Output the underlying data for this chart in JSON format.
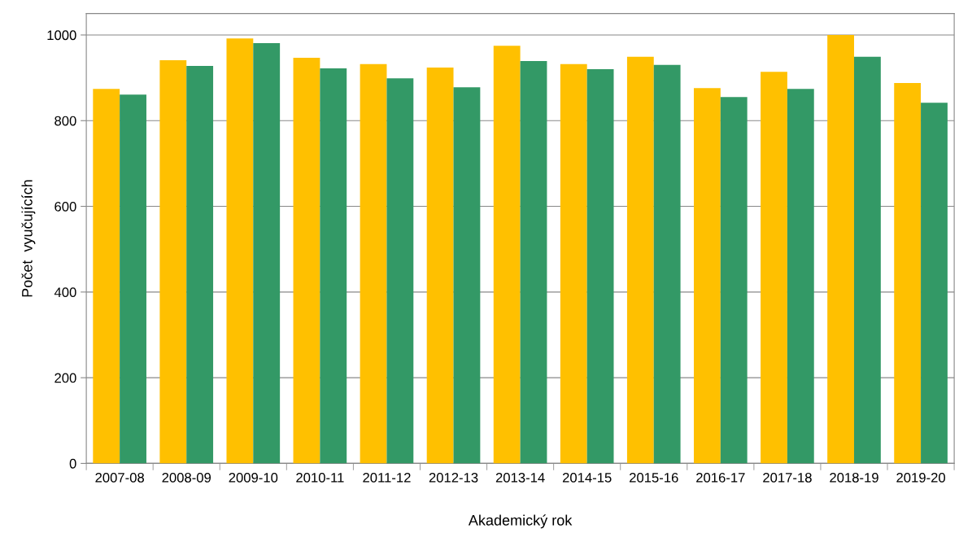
{
  "chart_data": {
    "type": "bar",
    "xlabel": "Akademický rok",
    "ylabel": "Počet  vyučujících",
    "categories": [
      "2007-08",
      "2008-09",
      "2009-10",
      "2010-11",
      "2011-12",
      "2012-13",
      "2013-14",
      "2014-15",
      "2015-16",
      "2016-17",
      "2017-18",
      "2018-19",
      "2019-20"
    ],
    "series": [
      {
        "color": "#ffc000",
        "values": [
          874,
          941,
          992,
          947,
          932,
          924,
          975,
          932,
          949,
          876,
          914,
          1000,
          888
        ]
      },
      {
        "color": "#339966",
        "values": [
          861,
          928,
          981,
          922,
          899,
          878,
          939,
          920,
          930,
          855,
          874,
          949,
          842
        ]
      }
    ],
    "ylim": [
      0,
      1050
    ],
    "yticks": [
      0,
      200,
      400,
      600,
      800,
      1000
    ],
    "grid": "y",
    "legend": false
  }
}
